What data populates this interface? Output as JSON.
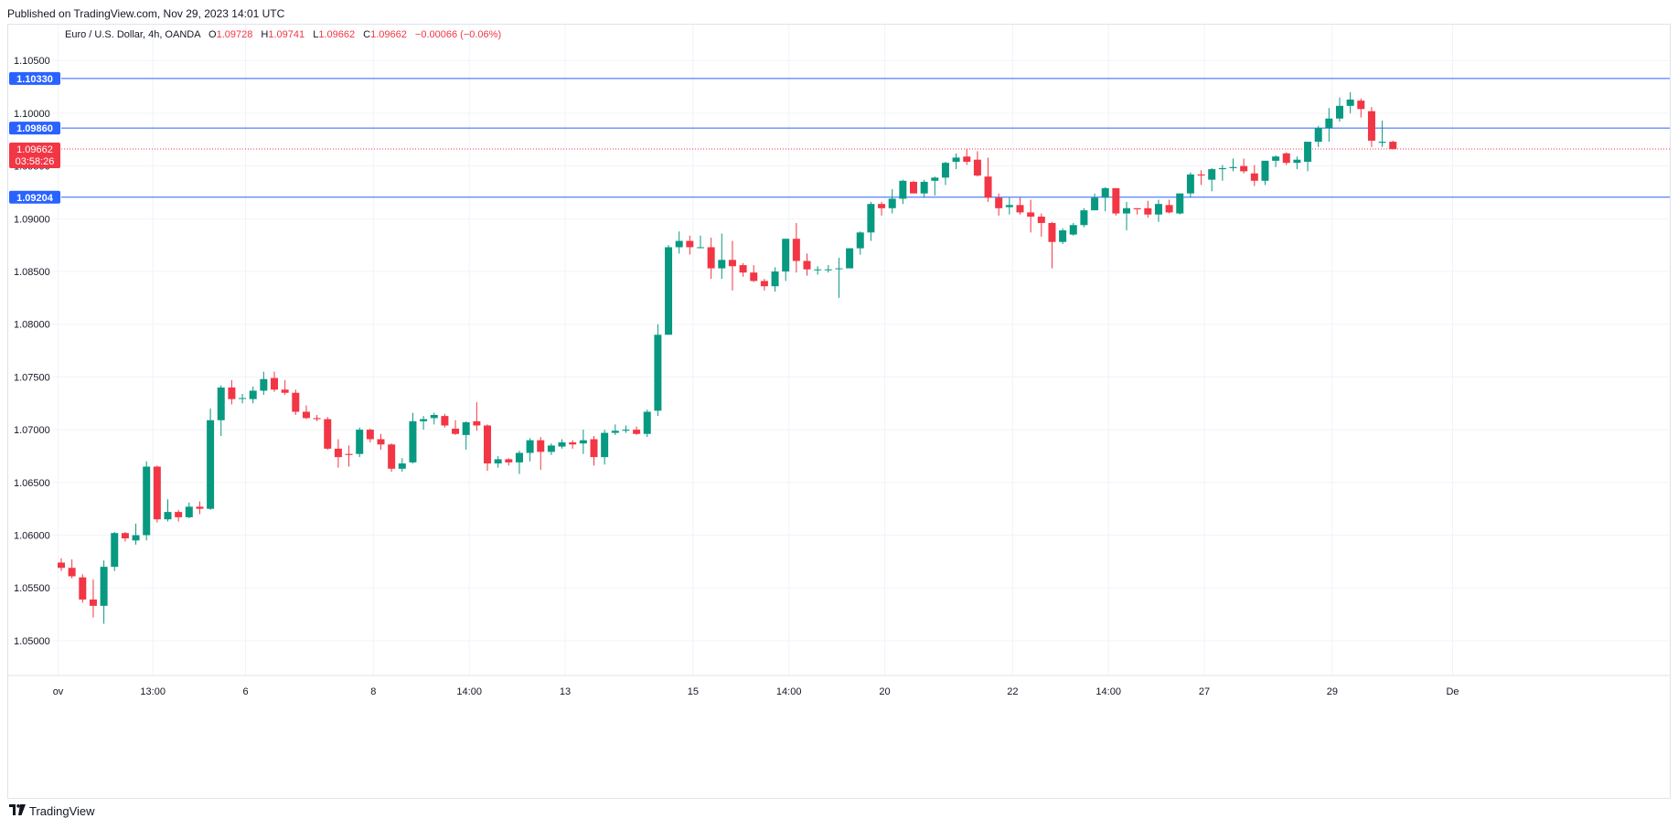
{
  "published": "Published on TradingView.com, Nov 29, 2023 14:01 UTC",
  "footer": {
    "brand": "TradingView",
    "logo_icon": "tradingview-logo-icon"
  },
  "legend": {
    "symbol": "Euro / U.S. Dollar, 4h, OANDA",
    "o_label": "O",
    "o_value": "1.09728",
    "h_label": "H",
    "h_value": "1.09741",
    "l_label": "L",
    "l_value": "1.09662",
    "c_label": "C",
    "c_value": "1.09662",
    "change": "−0.00066 (−0.06%)"
  },
  "colors": {
    "up": "#089981",
    "down": "#f23645",
    "hline": "#2962ff",
    "grid": "#f0f3fa"
  },
  "chart_data": {
    "type": "candlestick",
    "title": "Euro / U.S. Dollar, 4h, OANDA",
    "yaxis_position": "left",
    "ylim": [
      1.0467,
      1.1084
    ],
    "y_ticks": [
      "1.10500",
      "1.10000",
      "1.09500",
      "1.09000",
      "1.08500",
      "1.08000",
      "1.07500",
      "1.07000",
      "1.06500",
      "1.06000",
      "1.05500",
      "1.05000"
    ],
    "x_ticks": [
      {
        "label": "ov",
        "index": -0.3
      },
      {
        "label": "13:00",
        "index": 8.6
      },
      {
        "label": "6",
        "index": 17.3
      },
      {
        "label": "8",
        "index": 29.3
      },
      {
        "label": "14:00",
        "index": 38.3
      },
      {
        "label": "13",
        "index": 47.3
      },
      {
        "label": "15",
        "index": 59.3
      },
      {
        "label": "14:00",
        "index": 68.3
      },
      {
        "label": "20",
        "index": 77.3
      },
      {
        "label": "22",
        "index": 89.3
      },
      {
        "label": "14:00",
        "index": 98.3
      },
      {
        "label": "27",
        "index": 107.3
      },
      {
        "label": "29",
        "index": 119.3
      },
      {
        "label": "De",
        "index": 130.6
      }
    ],
    "grid": true,
    "horizontal_levels": [
      {
        "label": "1.10330",
        "value": 1.1033
      },
      {
        "label": "1.09860",
        "value": 1.0986
      },
      {
        "label": "1.09204",
        "value": 1.09204
      }
    ],
    "last_price": {
      "label": "1.09662",
      "countdown": "03:58:26",
      "value": 1.09662
    },
    "candles": [
      [
        1.0574,
        1.0578,
        1.0566,
        1.0569
      ],
      [
        1.0569,
        1.0577,
        1.0559,
        1.0561
      ],
      [
        1.056,
        1.0563,
        1.0536,
        1.0539
      ],
      [
        1.0539,
        1.0558,
        1.0522,
        1.0533
      ],
      [
        1.0533,
        1.0576,
        1.0516,
        1.057
      ],
      [
        1.057,
        1.0603,
        1.0566,
        1.0602
      ],
      [
        1.0602,
        1.0603,
        1.0594,
        1.0597
      ],
      [
        1.0595,
        1.0611,
        1.0591,
        1.06
      ],
      [
        1.06,
        1.067,
        1.0595,
        1.0665
      ],
      [
        1.0665,
        1.0666,
        1.0612,
        1.0615
      ],
      [
        1.0615,
        1.0634,
        1.0613,
        1.0622
      ],
      [
        1.0622,
        1.0624,
        1.0613,
        1.0617
      ],
      [
        1.0617,
        1.0631,
        1.0616,
        1.0627
      ],
      [
        1.0627,
        1.0632,
        1.062,
        1.0625
      ],
      [
        1.0625,
        1.072,
        1.0624,
        1.0709
      ],
      [
        1.0709,
        1.0742,
        1.0694,
        1.074
      ],
      [
        1.074,
        1.0747,
        1.0724,
        1.0729
      ],
      [
        1.073,
        1.0734,
        1.0725,
        1.073
      ],
      [
        1.0729,
        1.0741,
        1.0725,
        1.0737
      ],
      [
        1.0737,
        1.0755,
        1.0733,
        1.0748
      ],
      [
        1.0749,
        1.0755,
        1.0736,
        1.0738
      ],
      [
        1.0738,
        1.0747,
        1.0733,
        1.0735
      ],
      [
        1.0735,
        1.0738,
        1.0714,
        1.0717
      ],
      [
        1.0717,
        1.0723,
        1.071,
        1.0711
      ],
      [
        1.0711,
        1.0714,
        1.0708,
        1.071
      ],
      [
        1.071,
        1.0712,
        1.0681,
        1.0682
      ],
      [
        1.0682,
        1.0691,
        1.0664,
        1.0674
      ],
      [
        1.0677,
        1.0685,
        1.0665,
        1.0676
      ],
      [
        1.0677,
        1.0702,
        1.0674,
        1.07
      ],
      [
        1.07,
        1.0701,
        1.0688,
        1.0691
      ],
      [
        1.0691,
        1.0696,
        1.0681,
        1.0686
      ],
      [
        1.0686,
        1.0687,
        1.066,
        1.0663
      ],
      [
        1.0663,
        1.0673,
        1.066,
        1.0668
      ],
      [
        1.0669,
        1.0716,
        1.0668,
        1.0708
      ],
      [
        1.0708,
        1.0713,
        1.07,
        1.071
      ],
      [
        1.0711,
        1.0716,
        1.0705,
        1.0714
      ],
      [
        1.0713,
        1.0715,
        1.0702,
        1.0704
      ],
      [
        1.0701,
        1.0709,
        1.0695,
        1.0696
      ],
      [
        1.0695,
        1.0708,
        1.0681,
        1.0707
      ],
      [
        1.0708,
        1.0726,
        1.0699,
        1.0704
      ],
      [
        1.0704,
        1.0705,
        1.0661,
        1.0668
      ],
      [
        1.0668,
        1.0675,
        1.0664,
        1.0672
      ],
      [
        1.0672,
        1.0673,
        1.0666,
        1.0669
      ],
      [
        1.0669,
        1.068,
        1.0658,
        1.0678
      ],
      [
        1.0678,
        1.0692,
        1.067,
        1.069
      ],
      [
        1.069,
        1.0693,
        1.0662,
        1.0679
      ],
      [
        1.0679,
        1.0687,
        1.0676,
        1.0685
      ],
      [
        1.0684,
        1.0691,
        1.0682,
        1.0688
      ],
      [
        1.0688,
        1.069,
        1.0682,
        1.0686
      ],
      [
        1.0687,
        1.07,
        1.0677,
        1.069
      ],
      [
        1.0691,
        1.0694,
        1.0666,
        1.0674
      ],
      [
        1.0674,
        1.07,
        1.0667,
        1.0697
      ],
      [
        1.0697,
        1.0705,
        1.0695,
        1.0699
      ],
      [
        1.0699,
        1.0704,
        1.0697,
        1.07
      ],
      [
        1.07,
        1.0703,
        1.0695,
        1.0696
      ],
      [
        1.0696,
        1.0719,
        1.0693,
        1.0717
      ],
      [
        1.0718,
        1.08,
        1.0713,
        1.079
      ],
      [
        1.079,
        1.0875,
        1.079,
        1.0873
      ],
      [
        1.0873,
        1.0888,
        1.0867,
        1.0879
      ],
      [
        1.0879,
        1.0884,
        1.0866,
        1.0873
      ],
      [
        1.0873,
        1.0884,
        1.0872,
        1.0873
      ],
      [
        1.0873,
        1.0882,
        1.0843,
        1.0853
      ],
      [
        1.0853,
        1.0886,
        1.0843,
        1.0861
      ],
      [
        1.0861,
        1.0879,
        1.0832,
        1.0855
      ],
      [
        1.0856,
        1.0858,
        1.0845,
        1.0849
      ],
      [
        1.0849,
        1.0856,
        1.084,
        1.0841
      ],
      [
        1.0841,
        1.0843,
        1.0832,
        1.0836
      ],
      [
        1.0836,
        1.0854,
        1.0831,
        1.085
      ],
      [
        1.085,
        1.0881,
        1.0841,
        1.0881
      ],
      [
        1.0881,
        1.0896,
        1.0849,
        1.086
      ],
      [
        1.086,
        1.0867,
        1.0846,
        1.0852
      ],
      [
        1.0852,
        1.0855,
        1.0847,
        1.0852
      ],
      [
        1.0852,
        1.0856,
        1.0849,
        1.0852
      ],
      [
        1.0853,
        1.0863,
        1.0825,
        1.0853
      ],
      [
        1.0853,
        1.0872,
        1.0853,
        1.0872
      ],
      [
        1.0872,
        1.0888,
        1.0866,
        1.0887
      ],
      [
        1.0887,
        1.0916,
        1.0879,
        1.0914
      ],
      [
        1.0914,
        1.0916,
        1.0903,
        1.091
      ],
      [
        1.091,
        1.0928,
        1.0905,
        1.0919
      ],
      [
        1.0919,
        1.0937,
        1.0914,
        1.0936
      ],
      [
        1.0935,
        1.0936,
        1.0924,
        1.0924
      ],
      [
        1.0924,
        1.0937,
        1.092,
        1.0935
      ],
      [
        1.0936,
        1.094,
        1.0922,
        1.0939
      ],
      [
        1.0939,
        1.0954,
        1.0932,
        1.0953
      ],
      [
        1.0954,
        1.0962,
        1.0947,
        1.0958
      ],
      [
        1.0959,
        1.0966,
        1.0951,
        1.0954
      ],
      [
        1.0956,
        1.0964,
        1.094,
        1.0941
      ],
      [
        1.094,
        1.0958,
        1.0916,
        1.092
      ],
      [
        1.092,
        1.0924,
        1.0903,
        1.091
      ],
      [
        1.0911,
        1.092,
        1.0904,
        1.0913
      ],
      [
        1.0913,
        1.092,
        1.0904,
        1.0906
      ],
      [
        1.0906,
        1.0918,
        1.0887,
        1.0902
      ],
      [
        1.0902,
        1.0905,
        1.0883,
        1.0896
      ],
      [
        1.0896,
        1.0897,
        1.0853,
        1.0878
      ],
      [
        1.0878,
        1.0891,
        1.0876,
        1.0889
      ],
      [
        1.0885,
        1.0896,
        1.0884,
        1.0894
      ],
      [
        1.0894,
        1.091,
        1.0892,
        1.0908
      ],
      [
        1.0908,
        1.0924,
        1.0908,
        1.092
      ],
      [
        1.092,
        1.093,
        1.0907,
        1.0929
      ],
      [
        1.0929,
        1.0929,
        1.0903,
        1.0905
      ],
      [
        1.0905,
        1.0916,
        1.0889,
        1.091
      ],
      [
        1.091,
        1.091,
        1.0904,
        1.0909
      ],
      [
        1.091,
        1.0917,
        1.0901,
        1.0904
      ],
      [
        1.0904,
        1.0918,
        1.0897,
        1.0914
      ],
      [
        1.0913,
        1.0918,
        1.0905,
        1.0906
      ],
      [
        1.0905,
        1.0924,
        1.0904,
        1.0924
      ],
      [
        1.0924,
        1.0944,
        1.092,
        1.0942
      ],
      [
        1.0942,
        1.0946,
        1.0932,
        1.0941
      ],
      [
        1.0937,
        1.0948,
        1.0926,
        1.0947
      ],
      [
        1.0947,
        1.0951,
        1.0936,
        1.0948
      ],
      [
        1.0948,
        1.0957,
        1.0945,
        1.0949
      ],
      [
        1.095,
        1.0957,
        1.0943,
        1.0945
      ],
      [
        1.0943,
        1.0951,
        1.0931,
        1.0936
      ],
      [
        1.0936,
        1.0953,
        1.0932,
        1.0955
      ],
      [
        1.0955,
        1.096,
        1.0949,
        1.0959
      ],
      [
        1.0962,
        1.0963,
        1.0951,
        1.0953
      ],
      [
        1.0953,
        1.0959,
        1.0947,
        1.0956
      ],
      [
        1.0954,
        1.0973,
        1.0945,
        1.0973
      ],
      [
        1.0973,
        1.0988,
        1.0968,
        1.0986
      ],
      [
        1.0986,
        1.1005,
        1.0973,
        1.0995
      ],
      [
        1.0995,
        1.1015,
        1.0992,
        1.1007
      ],
      [
        1.1007,
        1.102,
        1.1,
        1.1013
      ],
      [
        1.1012,
        1.1014,
        1.0996,
        1.1004
      ],
      [
        1.1002,
        1.1006,
        1.0968,
        1.0974
      ],
      [
        1.0972,
        1.0993,
        1.0968,
        1.0973
      ],
      [
        1.0973,
        1.0974,
        1.0966,
        1.0966
      ]
    ]
  }
}
